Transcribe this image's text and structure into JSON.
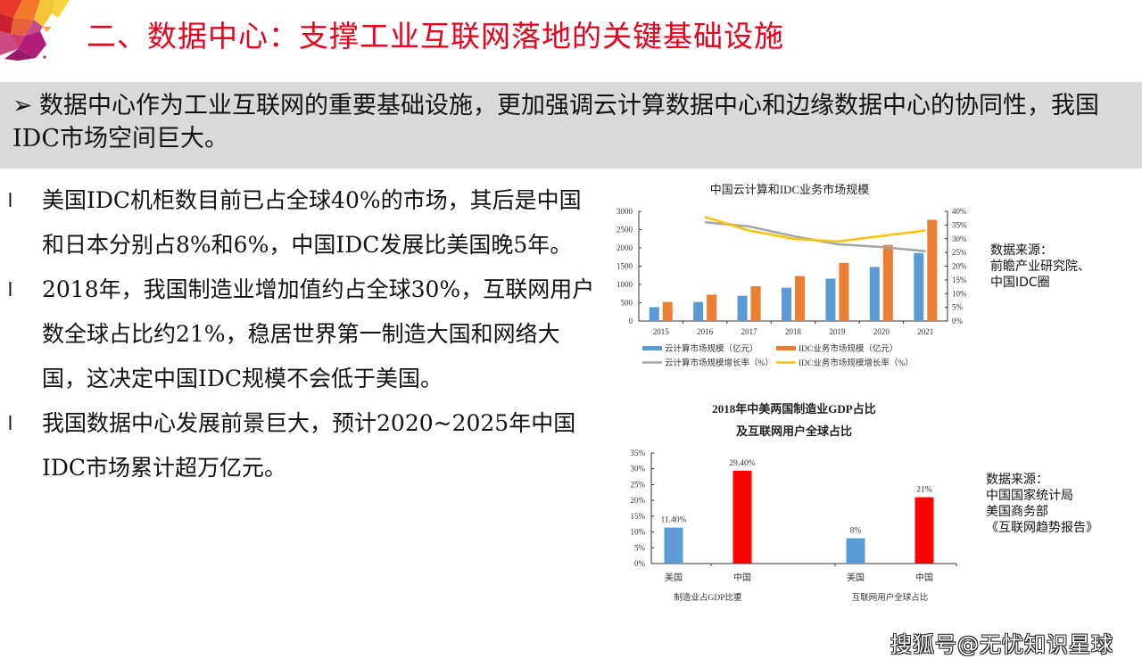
{
  "slide": {
    "title": "二、数据中心：支撑工业互联网落地的关键基础设施",
    "banner": {
      "arrow": "➢",
      "text": "数据中心作为工业互联网的重要基础设施，更加强调云计算数据中心和边缘数据中心的协同性，我国IDC市场空间巨大。"
    },
    "bullets": [
      {
        "mark": "l",
        "text": "美国IDC机柜数目前已占全球40%的市场，其后是中国和日本分别占8%和6%，中国IDC发展比美国晚5年。"
      },
      {
        "mark": "l",
        "text": "2018年，我国制造业增加值约占全球30%，互联网用户数全球占比约21%，稳居世界第一制造大国和网络大国，这决定中国IDC规模不会低于美国。"
      },
      {
        "mark": "l",
        "text": "我国数据中心发展前景巨大，预计2020~2025年中国IDC市场累计超万亿元。"
      }
    ],
    "source1": {
      "label": "数据来源：",
      "lines": [
        "前瞻产业研究院、",
        "中国IDC圈"
      ]
    },
    "source2": {
      "label": "数据来源：",
      "lines": [
        "中国国家统计局",
        "美国商务部",
        "《互联网趋势报告》"
      ]
    },
    "watermark": "搜狐号@无忧知识星球"
  },
  "colors": {
    "title_red": "#e8001c",
    "banner_gray": "#d9d9d9",
    "cloud_blue": "#5b9bd5",
    "idc_orange": "#ed7d31",
    "cloud_growth_gray": "#a5a5a5",
    "idc_growth_yellow": "#ffc000",
    "china_red": "#ff0000",
    "usa_blue": "#5b9bd5"
  },
  "chart_data": [
    {
      "type": "bar",
      "title": "中国云计算和IDC业务市场规模",
      "categories": [
        "2015",
        "2016",
        "2017",
        "2018",
        "2019",
        "2020",
        "2021"
      ],
      "series": [
        {
          "name": "云计算市场规模（亿元）",
          "type": "bar",
          "axis": "left",
          "color": "#5b9bd5",
          "values": [
            380,
            520,
            690,
            910,
            1160,
            1480,
            1860
          ]
        },
        {
          "name": "IDC业务市场规模（亿元）",
          "type": "bar",
          "axis": "left",
          "color": "#ed7d31",
          "values": [
            520,
            720,
            950,
            1230,
            1590,
            2080,
            2770
          ]
        },
        {
          "name": "云计算市场规模增长率（%）",
          "type": "line",
          "axis": "right",
          "color": "#a5a5a5",
          "values": [
            null,
            36,
            34.5,
            31,
            28,
            27,
            25.5
          ]
        },
        {
          "name": "IDC业务市场规模增长率（%）",
          "type": "line",
          "axis": "right",
          "color": "#ffc000",
          "values": [
            null,
            38,
            33,
            30,
            29,
            31,
            33
          ]
        }
      ],
      "y_left": {
        "ticks": [
          "0",
          "500",
          "1000",
          "1500",
          "2000",
          "2500",
          "3000"
        ],
        "range": [
          0,
          3000
        ]
      },
      "y_right": {
        "ticks": [
          "0%",
          "5%",
          "10%",
          "15%",
          "20%",
          "25%",
          "30%",
          "35%",
          "40%"
        ],
        "range": [
          0,
          40
        ]
      },
      "legend_position": "bottom",
      "grid": false
    },
    {
      "type": "bar",
      "title": "2018年中美两国制造业GDP占比及互联网用户全球占比",
      "title_lines": [
        "2018年中美两国制造业GDP占比",
        "及互联网用户全球占比"
      ],
      "groups": [
        {
          "label": "制造业占GDP比重",
          "bars": [
            {
              "country": "美国",
              "value": 11.4,
              "label": "11.40%",
              "color": "#5b9bd5"
            },
            {
              "country": "中国",
              "value": 29.4,
              "label": "29.40%",
              "color": "#ff0000"
            }
          ]
        },
        {
          "label": "互联网用户全球占比",
          "bars": [
            {
              "country": "美国",
              "value": 8,
              "label": "8%",
              "color": "#5b9bd5"
            },
            {
              "country": "中国",
              "value": 21,
              "label": "21%",
              "color": "#ff0000"
            }
          ]
        }
      ],
      "y_axis": {
        "ticks": [
          "0%",
          "5%",
          "10%",
          "15%",
          "20%",
          "25%",
          "30%",
          "35%"
        ],
        "range": [
          0,
          35
        ]
      },
      "grid": false
    }
  ]
}
